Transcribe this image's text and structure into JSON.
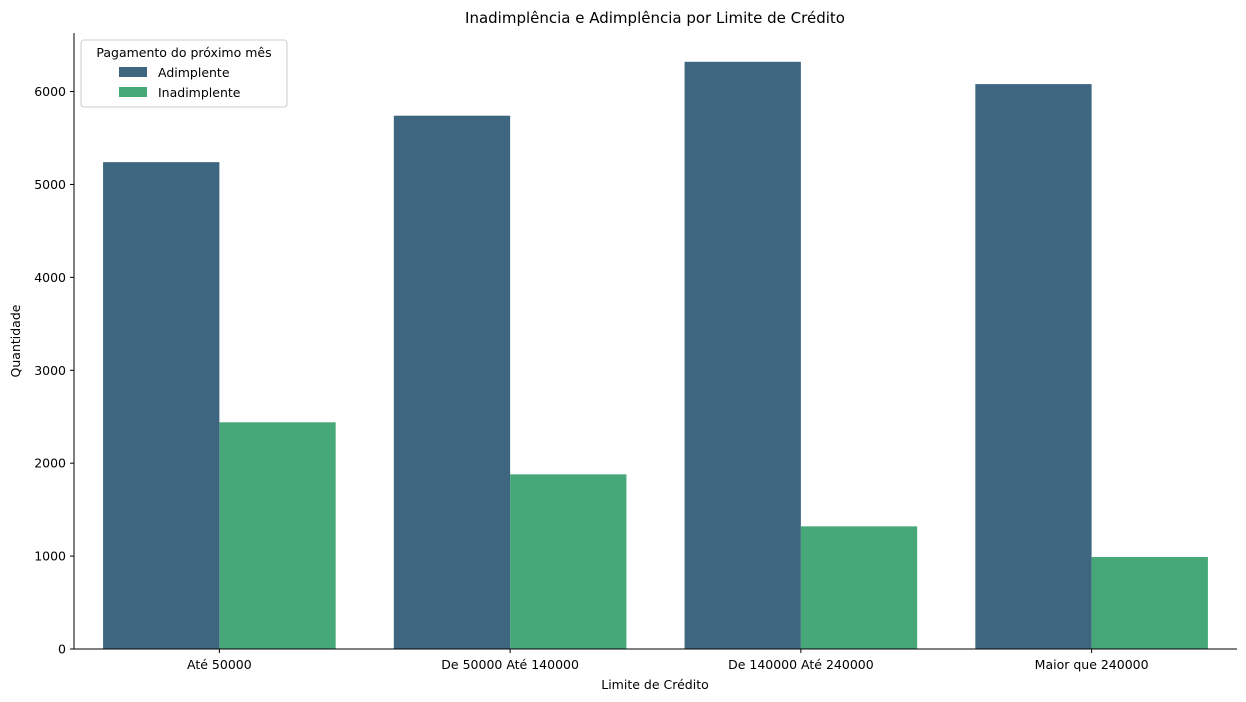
{
  "chart_data": {
    "type": "bar",
    "title": "Inadimplência e Adimplência por Limite de Crédito",
    "xlabel": "Limite de Crédito",
    "ylabel": "Quantidade",
    "categories": [
      "Até 50000",
      "De 50000 Até 140000",
      "De 140000 Até 240000",
      "Maior que 240000"
    ],
    "series": [
      {
        "name": "Adimplente",
        "values": [
          5240,
          5740,
          6320,
          6080
        ],
        "color": "#3e6680"
      },
      {
        "name": "Inadimplente",
        "values": [
          2440,
          1880,
          1320,
          990
        ],
        "color": "#46a879"
      }
    ],
    "ylim": [
      0,
      6630
    ],
    "yticks": [
      0,
      1000,
      2000,
      3000,
      4000,
      5000,
      6000
    ],
    "grid": false,
    "legend": {
      "title": "Pagamento do próximo mês",
      "position": "top-left"
    }
  }
}
